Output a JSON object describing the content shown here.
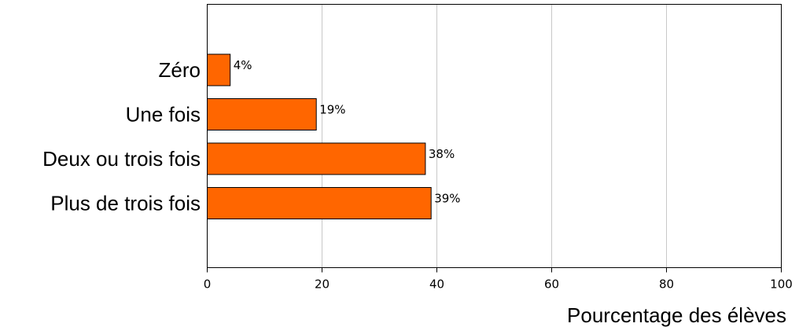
{
  "chart_data": {
    "type": "bar",
    "orientation": "horizontal",
    "categories": [
      "Zéro",
      "Une fois",
      "Deux ou trois fois",
      "Plus de trois fois"
    ],
    "values": [
      4,
      19,
      38,
      39
    ],
    "value_labels": [
      "4%",
      "19%",
      "38%",
      "39%"
    ],
    "xlabel": "Pourcentage des élèves",
    "ylabel": "",
    "xlim": [
      0,
      100
    ],
    "xticks": [
      "0",
      "20",
      "40",
      "60",
      "80",
      "100"
    ],
    "grid": "vertical",
    "bar_color": "#FF6600"
  }
}
